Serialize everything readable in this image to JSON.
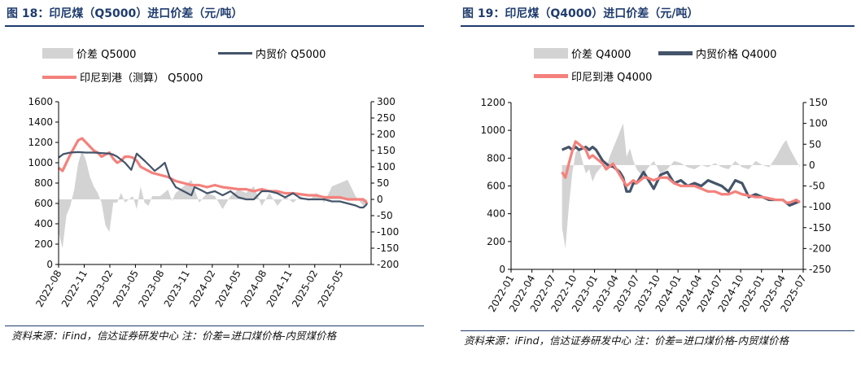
{
  "charts": [
    {
      "figure_title": "图 18：印尼煤（Q5000）进口价差（元/吨）",
      "source": "资料来源：iFind，信达证券研发中心 注：价差=进口煤价格-内贸煤价格",
      "legend": {
        "spread": "价差 Q5000",
        "domestic": "内贸价 Q5000",
        "indonesia": "印尼到港（测算） Q5000"
      }
    },
    {
      "figure_title": "图 19：印尼煤（Q4000）进口价差（元/吨）",
      "source": "资料来源：iFind，信达证券研发中心 注：价差=进口煤价格-内贸煤价格",
      "legend": {
        "spread": "价差 Q4000",
        "domestic": "内贸价格 Q4000",
        "indonesia": "印尼到港 Q4000"
      }
    }
  ],
  "chart_data": [
    {
      "type": "line",
      "title": "印尼煤（Q5000）进口价差（元/吨）",
      "colors": {
        "spread": "#d3d3d3",
        "domestic": "#44546a",
        "indonesia": "#f4817c"
      },
      "y_left": {
        "lim": [
          0,
          1600
        ],
        "ticks": [
          "0",
          "200",
          "400",
          "600",
          "800",
          "1000",
          "1200",
          "1400",
          "1600"
        ]
      },
      "y_right": {
        "lim": [
          -200,
          300
        ],
        "ticks": [
          "300",
          "250",
          "200",
          "150",
          "100",
          "50",
          "0",
          "-50",
          "-100",
          "-150",
          "-200"
        ]
      },
      "x_ticks": [
        "2022-08",
        "2022-11",
        "2023-02",
        "2023-05",
        "2023-08",
        "2023-11",
        "2024-02",
        "2024-05",
        "2024-08",
        "2024-11",
        "2025-02",
        "2025-05"
      ],
      "x_range": [
        0,
        40
      ],
      "series": [
        {
          "name": "内贸价 Q5000",
          "axis": "left",
          "x": [
            0,
            0.6,
            1.5,
            2.5,
            3.5,
            4.5,
            5.5,
            6.5,
            7,
            7.5,
            8.5,
            9.3,
            10,
            11,
            11.8,
            12.3,
            13,
            13.6,
            14.2,
            15,
            16,
            17,
            17.4,
            18,
            19,
            20,
            21,
            22,
            23,
            24,
            25,
            26,
            27,
            28,
            29,
            30,
            31,
            32,
            33,
            34,
            35,
            36,
            37,
            38,
            38.6,
            39,
            39.3,
            39.5
          ],
          "y": [
            1050,
            1085,
            1100,
            1105,
            1100,
            1100,
            1095,
            1090,
            1080,
            1060,
            1000,
            930,
            1090,
            1020,
            960,
            920,
            960,
            1000,
            860,
            760,
            720,
            680,
            760,
            740,
            700,
            720,
            680,
            720,
            660,
            640,
            640,
            720,
            720,
            700,
            660,
            700,
            650,
            640,
            640,
            640,
            620,
            620,
            600,
            580,
            560,
            560,
            580,
            600
          ]
        },
        {
          "name": "印尼到港（测算） Q5000",
          "axis": "left",
          "x": [
            0,
            0.5,
            1,
            1.5,
            2,
            2.5,
            3,
            3.5,
            4,
            4.5,
            5,
            5.5,
            6,
            6.5,
            7,
            7.5,
            8,
            8.5,
            9,
            9.5,
            10,
            10.5,
            11,
            11.5,
            12,
            13,
            14,
            15,
            16,
            17,
            18,
            19,
            20,
            21,
            22,
            23,
            24,
            25,
            26,
            27,
            28,
            29,
            30,
            31,
            32,
            33,
            34,
            35,
            36,
            37,
            38,
            39,
            39.5
          ],
          "y": [
            950,
            920,
            1000,
            1080,
            1150,
            1220,
            1240,
            1200,
            1160,
            1120,
            1100,
            1060,
            1080,
            1100,
            1040,
            1000,
            1020,
            1060,
            1060,
            1050,
            1020,
            960,
            940,
            920,
            900,
            880,
            860,
            820,
            800,
            780,
            780,
            760,
            780,
            760,
            750,
            740,
            740,
            720,
            740,
            720,
            720,
            700,
            700,
            690,
            680,
            680,
            660,
            660,
            660,
            640,
            640,
            640,
            600
          ]
        },
        {
          "name": "价差 Q5000",
          "axis": "right",
          "type": "area",
          "x": [
            0,
            0.5,
            1,
            1.5,
            2,
            2.5,
            3,
            3.5,
            4,
            4.5,
            5,
            5.5,
            6,
            6.5,
            7,
            7.5,
            8,
            8.5,
            9,
            9.5,
            10,
            10.5,
            11,
            11.5,
            12,
            13,
            14,
            14.5,
            15,
            16,
            17,
            18,
            19,
            20,
            21,
            22,
            23,
            24,
            25,
            26,
            27,
            28,
            29,
            30,
            31,
            32,
            33,
            34,
            35,
            36,
            37,
            38,
            39,
            39.5
          ],
          "y": [
            -100,
            -150,
            -50,
            -20,
            30,
            110,
            150,
            120,
            70,
            40,
            20,
            -10,
            -80,
            -100,
            -10,
            -10,
            20,
            -10,
            0,
            10,
            -30,
            40,
            -10,
            -20,
            10,
            10,
            30,
            -5,
            20,
            40,
            60,
            -10,
            20,
            10,
            -30,
            10,
            30,
            20,
            40,
            -20,
            20,
            -20,
            10,
            -10,
            10,
            -5,
            20,
            -10,
            40,
            50,
            60,
            10,
            -20,
            -10
          ]
        }
      ]
    },
    {
      "type": "line",
      "title": "印尼煤（Q4000）进口价差（元/吨）",
      "colors": {
        "spread": "#d3d3d3",
        "domestic": "#44546a",
        "indonesia": "#f4817c"
      },
      "y_left": {
        "lim": [
          0,
          1200
        ],
        "ticks": [
          "0",
          "200",
          "400",
          "600",
          "800",
          "1000",
          "1200"
        ]
      },
      "y_right": {
        "lim": [
          -250,
          150
        ],
        "ticks": [
          "150",
          "100",
          "50",
          "0",
          "-50",
          "-100",
          "-150",
          "-200",
          "-250"
        ]
      },
      "x_ticks": [
        "2022-01",
        "2022-04",
        "2022-07",
        "2022-10",
        "2023-01",
        "2023-04",
        "2023-07",
        "2023-10",
        "2024-01",
        "2024-04",
        "2024-07",
        "2024-10",
        "2025-01",
        "2025-04",
        "2025-07"
      ],
      "x_range": [
        0,
        43
      ],
      "series": [
        {
          "name": "内贸价格 Q4000",
          "axis": "left",
          "x": [
            7.5,
            8,
            8.5,
            9,
            9.5,
            10,
            10.5,
            11,
            11.5,
            12,
            12.5,
            13,
            13.5,
            14,
            14.5,
            15,
            15.5,
            16,
            16.5,
            17,
            17.5,
            18,
            18.5,
            19,
            19.5,
            20,
            21,
            22,
            23,
            24,
            25,
            26,
            27,
            28,
            29,
            30,
            31,
            32,
            33,
            34,
            35,
            36,
            37,
            38,
            39,
            40,
            40.5,
            41,
            42,
            42.5
          ],
          "y": [
            860,
            870,
            880,
            860,
            880,
            860,
            870,
            880,
            860,
            880,
            860,
            820,
            780,
            760,
            740,
            740,
            720,
            700,
            660,
            560,
            560,
            620,
            620,
            660,
            700,
            660,
            580,
            680,
            700,
            620,
            640,
            600,
            620,
            600,
            640,
            620,
            600,
            560,
            640,
            620,
            520,
            540,
            520,
            500,
            500,
            500,
            480,
            460,
            480,
            490
          ]
        },
        {
          "name": "印尼到港 Q4000",
          "axis": "left",
          "x": [
            7.5,
            8,
            8.5,
            9,
            9.5,
            10,
            10.5,
            11,
            11.5,
            12,
            12.5,
            13,
            13.5,
            14,
            14.5,
            15,
            15.5,
            16,
            16.5,
            17,
            17.5,
            18,
            18.5,
            19,
            19.5,
            20,
            21,
            22,
            23,
            24,
            25,
            26,
            27,
            28,
            29,
            30,
            31,
            32,
            33,
            34,
            35,
            36,
            37,
            38,
            39,
            40,
            40.5,
            41,
            42,
            42.5
          ],
          "y": [
            700,
            660,
            760,
            850,
            920,
            900,
            880,
            860,
            800,
            820,
            800,
            780,
            760,
            720,
            740,
            760,
            720,
            680,
            640,
            600,
            620,
            640,
            620,
            640,
            660,
            660,
            640,
            660,
            660,
            620,
            600,
            600,
            600,
            580,
            560,
            560,
            540,
            540,
            560,
            540,
            530,
            520,
            520,
            510,
            500,
            500,
            480,
            480,
            500,
            480
          ]
        },
        {
          "name": "价差 Q4000",
          "axis": "right",
          "type": "area",
          "x": [
            7.5,
            8,
            8.5,
            9,
            9.5,
            10,
            10.5,
            11,
            11.5,
            12,
            12.5,
            13,
            13.5,
            14,
            14.5,
            15,
            15.5,
            16,
            16.5,
            17,
            17.5,
            18,
            18.5,
            19,
            19.5,
            20,
            21,
            22,
            23,
            24,
            25,
            26,
            27,
            28,
            29,
            30,
            31,
            32,
            33,
            34,
            35,
            36,
            37,
            38,
            39,
            40,
            40.5,
            41,
            42,
            42.5
          ],
          "y": [
            -150,
            -200,
            -100,
            -20,
            30,
            40,
            10,
            -20,
            -10,
            -40,
            -20,
            -10,
            0,
            -10,
            20,
            40,
            60,
            80,
            100,
            20,
            40,
            10,
            -10,
            -20,
            -30,
            -10,
            10,
            -20,
            -10,
            10,
            5,
            -5,
            -10,
            0,
            -5,
            5,
            -5,
            -10,
            10,
            -5,
            -10,
            10,
            0,
            -5,
            20,
            50,
            60,
            40,
            10,
            -5
          ]
        }
      ]
    }
  ]
}
